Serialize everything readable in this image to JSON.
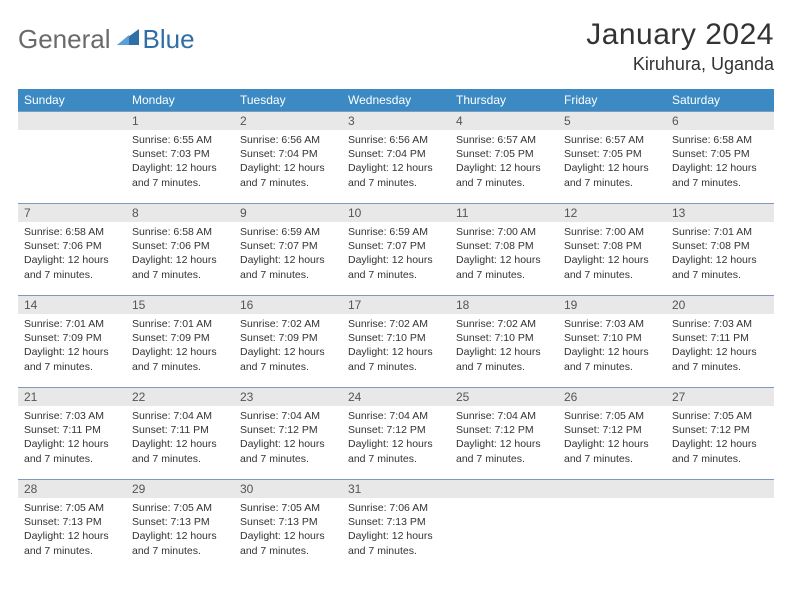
{
  "logo": {
    "general": "General",
    "blue": "Blue"
  },
  "title": "January 2024",
  "location": "Kiruhura, Uganda",
  "colors": {
    "header_bg": "#3b8ac4",
    "header_text": "#ffffff",
    "daynum_bg": "#e8e8e8",
    "daynum_text": "#555555",
    "row_border": "#7d9bbd",
    "body_text": "#333333",
    "logo_gray": "#6a6a6a",
    "logo_blue": "#2f6fa8"
  },
  "weekdays": [
    "Sunday",
    "Monday",
    "Tuesday",
    "Wednesday",
    "Thursday",
    "Friday",
    "Saturday"
  ],
  "start_weekday": 1,
  "days_in_month": 31,
  "daylight_text": "Daylight: 12 hours and 7 minutes.",
  "days": {
    "1": {
      "sunrise": "6:55 AM",
      "sunset": "7:03 PM"
    },
    "2": {
      "sunrise": "6:56 AM",
      "sunset": "7:04 PM"
    },
    "3": {
      "sunrise": "6:56 AM",
      "sunset": "7:04 PM"
    },
    "4": {
      "sunrise": "6:57 AM",
      "sunset": "7:05 PM"
    },
    "5": {
      "sunrise": "6:57 AM",
      "sunset": "7:05 PM"
    },
    "6": {
      "sunrise": "6:58 AM",
      "sunset": "7:05 PM"
    },
    "7": {
      "sunrise": "6:58 AM",
      "sunset": "7:06 PM"
    },
    "8": {
      "sunrise": "6:58 AM",
      "sunset": "7:06 PM"
    },
    "9": {
      "sunrise": "6:59 AM",
      "sunset": "7:07 PM"
    },
    "10": {
      "sunrise": "6:59 AM",
      "sunset": "7:07 PM"
    },
    "11": {
      "sunrise": "7:00 AM",
      "sunset": "7:08 PM"
    },
    "12": {
      "sunrise": "7:00 AM",
      "sunset": "7:08 PM"
    },
    "13": {
      "sunrise": "7:01 AM",
      "sunset": "7:08 PM"
    },
    "14": {
      "sunrise": "7:01 AM",
      "sunset": "7:09 PM"
    },
    "15": {
      "sunrise": "7:01 AM",
      "sunset": "7:09 PM"
    },
    "16": {
      "sunrise": "7:02 AM",
      "sunset": "7:09 PM"
    },
    "17": {
      "sunrise": "7:02 AM",
      "sunset": "7:10 PM"
    },
    "18": {
      "sunrise": "7:02 AM",
      "sunset": "7:10 PM"
    },
    "19": {
      "sunrise": "7:03 AM",
      "sunset": "7:10 PM"
    },
    "20": {
      "sunrise": "7:03 AM",
      "sunset": "7:11 PM"
    },
    "21": {
      "sunrise": "7:03 AM",
      "sunset": "7:11 PM"
    },
    "22": {
      "sunrise": "7:04 AM",
      "sunset": "7:11 PM"
    },
    "23": {
      "sunrise": "7:04 AM",
      "sunset": "7:12 PM"
    },
    "24": {
      "sunrise": "7:04 AM",
      "sunset": "7:12 PM"
    },
    "25": {
      "sunrise": "7:04 AM",
      "sunset": "7:12 PM"
    },
    "26": {
      "sunrise": "7:05 AM",
      "sunset": "7:12 PM"
    },
    "27": {
      "sunrise": "7:05 AM",
      "sunset": "7:12 PM"
    },
    "28": {
      "sunrise": "7:05 AM",
      "sunset": "7:13 PM"
    },
    "29": {
      "sunrise": "7:05 AM",
      "sunset": "7:13 PM"
    },
    "30": {
      "sunrise": "7:05 AM",
      "sunset": "7:13 PM"
    },
    "31": {
      "sunrise": "7:06 AM",
      "sunset": "7:13 PM"
    }
  }
}
